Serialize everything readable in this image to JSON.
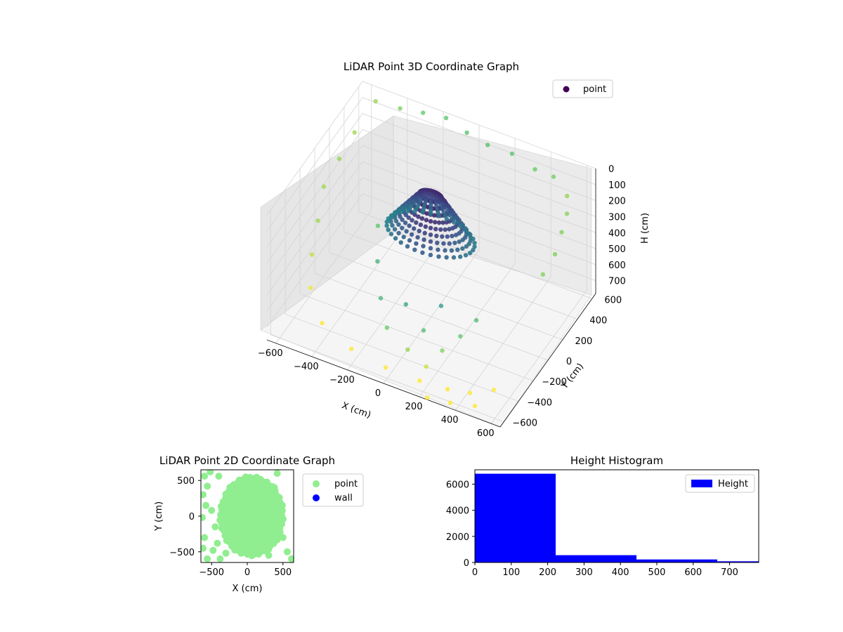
{
  "chart_data": [
    {
      "type": "scatter",
      "projection": "3d",
      "title": "LiDAR Point 3D Coordinate Graph",
      "xlabel": "X (cm)",
      "ylabel": "Y (cm)",
      "zlabel": "H (cm)",
      "xlim": [
        -650,
        650
      ],
      "ylim": [
        -650,
        650
      ],
      "zlim": [
        0,
        780
      ],
      "z_inverted": true,
      "x_ticks": [
        -600,
        -400,
        -200,
        0,
        200,
        400,
        600
      ],
      "y_ticks": [
        -600,
        -400,
        -200,
        0,
        200,
        400,
        600
      ],
      "z_ticks": [
        0,
        100,
        200,
        300,
        400,
        500,
        600,
        700
      ],
      "x_tick_labels": [
        "−600",
        "−400",
        "−200",
        "0",
        "200",
        "400",
        "600"
      ],
      "y_tick_labels": [
        "−600",
        "−400",
        "−200",
        "0",
        "200",
        "400",
        "600"
      ],
      "z_tick_labels": [
        "0",
        "100",
        "200",
        "300",
        "400",
        "500",
        "600",
        "700"
      ],
      "colormap": "viridis",
      "color_by": "distance",
      "legend": {
        "entries": [
          "point"
        ],
        "placement": "top-right",
        "marker_color": "#440154"
      },
      "grid": true,
      "series": [
        {
          "name": "point",
          "points": [
            {
              "x": -540,
              "y": 560,
              "z": 20
            },
            {
              "x": -420,
              "y": 600,
              "z": 40
            },
            {
              "x": -300,
              "y": 620,
              "z": 30
            },
            {
              "x": -180,
              "y": 640,
              "z": 25
            },
            {
              "x": -60,
              "y": 630,
              "z": 60
            },
            {
              "x": 60,
              "y": 620,
              "z": 80
            },
            {
              "x": 200,
              "y": 610,
              "z": 70
            },
            {
              "x": 340,
              "y": 580,
              "z": 90
            },
            {
              "x": 460,
              "y": 540,
              "z": 60
            },
            {
              "x": 560,
              "y": 480,
              "z": 100
            },
            {
              "x": 600,
              "y": 380,
              "z": 130
            },
            {
              "x": 620,
              "y": 260,
              "z": 160
            },
            {
              "x": 640,
              "y": 120,
              "z": 200
            },
            {
              "x": 630,
              "y": -20,
              "z": 240
            },
            {
              "x": -600,
              "y": 420,
              "z": 150
            },
            {
              "x": -620,
              "y": 260,
              "z": 220
            },
            {
              "x": -640,
              "y": 100,
              "z": 300
            },
            {
              "x": -600,
              "y": -80,
              "z": 380
            },
            {
              "x": -560,
              "y": -260,
              "z": 460
            },
            {
              "x": -500,
              "y": -420,
              "z": 540
            },
            {
              "x": -380,
              "y": -560,
              "z": 620
            },
            {
              "x": -200,
              "y": -600,
              "z": 680
            },
            {
              "x": 0,
              "y": -620,
              "z": 700
            },
            {
              "x": 180,
              "y": -600,
              "z": 720
            },
            {
              "x": 320,
              "y": -560,
              "z": 740
            },
            {
              "x": 420,
              "y": -500,
              "z": 760
            },
            {
              "x": 520,
              "y": -420,
              "z": 750
            },
            {
              "x": 360,
              "y": -620,
              "z": 770
            },
            {
              "x": 240,
              "y": -640,
              "z": 775
            },
            {
              "x": 480,
              "y": -580,
              "z": 765
            },
            {
              "x": -380,
              "y": 200,
              "z": 500
            },
            {
              "x": -300,
              "y": 0,
              "z": 560
            },
            {
              "x": -200,
              "y": -200,
              "z": 620
            },
            {
              "x": -100,
              "y": -360,
              "z": 660
            },
            {
              "x": 40,
              "y": -420,
              "z": 700
            },
            {
              "x": 160,
              "y": -460,
              "z": 730
            },
            {
              "x": 80,
              "y": -300,
              "z": 640
            },
            {
              "x": -60,
              "y": -200,
              "z": 600
            },
            {
              "x": 200,
              "y": -340,
              "z": 690
            },
            {
              "x": 260,
              "y": -240,
              "z": 640
            },
            {
              "x": 300,
              "y": -120,
              "z": 600
            },
            {
              "x": 120,
              "y": -160,
              "z": 560
            }
          ]
        }
      ]
    },
    {
      "type": "scatter",
      "title": "LiDAR Point 2D Coordinate Graph",
      "xlabel": "X (cm)",
      "ylabel": "Y (cm)",
      "xlim": [
        -650,
        650
      ],
      "ylim": [
        -650,
        650
      ],
      "x_ticks": [
        -500,
        0,
        500
      ],
      "y_ticks": [
        -500,
        0,
        500
      ],
      "x_tick_labels": [
        "−500",
        "0",
        "500"
      ],
      "y_tick_labels": [
        "−500",
        "0",
        "500"
      ],
      "legend": {
        "placement": "outside-right",
        "entries": [
          {
            "name": "point",
            "color": "#90ee90"
          },
          {
            "name": "wall",
            "color": "#0000ff"
          }
        ]
      },
      "series": [
        {
          "name": "point",
          "color": "#90ee90",
          "points": [
            {
              "x": -600,
              "y": 560
            },
            {
              "x": -560,
              "y": 420
            },
            {
              "x": -620,
              "y": 300
            },
            {
              "x": -580,
              "y": 150
            },
            {
              "x": -630,
              "y": -20
            },
            {
              "x": -600,
              "y": -300
            },
            {
              "x": -620,
              "y": -450
            },
            {
              "x": -560,
              "y": -600
            },
            {
              "x": -480,
              "y": -480
            },
            {
              "x": -420,
              "y": -380
            },
            {
              "x": -380,
              "y": -600
            },
            {
              "x": -300,
              "y": -520
            },
            {
              "x": -500,
              "y": 80
            },
            {
              "x": -450,
              "y": -150
            },
            {
              "x": -520,
              "y": 620
            },
            {
              "x": -400,
              "y": 560
            },
            {
              "x": 380,
              "y": 400
            },
            {
              "x": 420,
              "y": 600
            },
            {
              "x": 620,
              "y": -600
            },
            {
              "x": 560,
              "y": -500
            },
            {
              "x": -300,
              "y": 100
            },
            {
              "x": -250,
              "y": -300
            },
            {
              "x": 300,
              "y": -550
            },
            {
              "x": 500,
              "y": -300
            }
          ]
        },
        {
          "name": "wall",
          "color": "#0000ff",
          "points": []
        }
      ]
    },
    {
      "type": "bar",
      "subtype": "histogram",
      "title": "Height Histogram",
      "xlabel": "",
      "ylabel": "",
      "xlim": [
        0,
        780
      ],
      "ylim": [
        0,
        7100
      ],
      "x_ticks": [
        0,
        100,
        200,
        300,
        400,
        500,
        600,
        700
      ],
      "y_ticks": [
        0,
        2000,
        4000,
        6000
      ],
      "x_tick_labels": [
        "0",
        "100",
        "200",
        "300",
        "400",
        "500",
        "600",
        "700"
      ],
      "y_tick_labels": [
        "0",
        "2000",
        "4000",
        "6000"
      ],
      "legend": {
        "placement": "top-right",
        "entries": [
          "Height"
        ]
      },
      "series": [
        {
          "name": "Height",
          "color": "#0000ff",
          "bins": [
            0,
            222,
            444,
            666,
            888
          ],
          "values": [
            6800,
            560,
            230,
            90
          ]
        }
      ]
    }
  ]
}
